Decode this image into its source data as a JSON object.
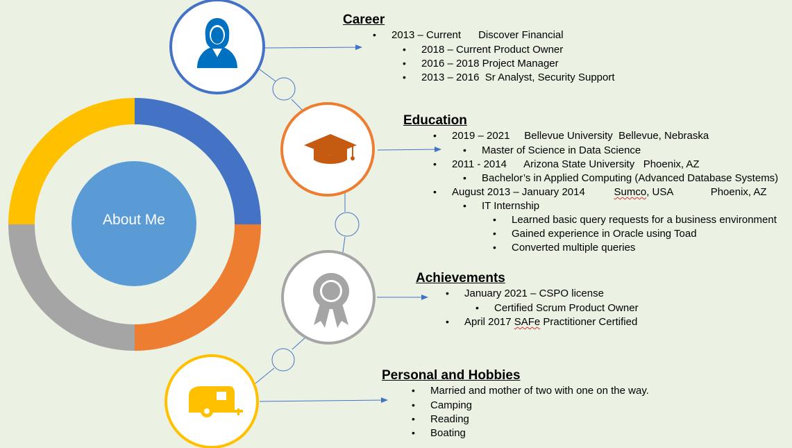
{
  "center": {
    "label": "About Me"
  },
  "colors": {
    "blue": "#4472c4",
    "orange": "#ed7d31",
    "gray": "#a5a5a5",
    "yellow": "#ffc000",
    "center_fill": "#5b9bd5",
    "connector": "#4472c4"
  },
  "sections": {
    "career": {
      "title": "Career",
      "icon": "person-icon",
      "items": [
        "2013 – Current      Discover Financial",
        "2018 – Current Product Owner",
        "2016 – 2018 Project Manager",
        "2013 – 2016  Sr Analyst, Security Support"
      ]
    },
    "education": {
      "title": "Education",
      "icon": "graduation-cap-icon",
      "items": [
        "2019 – 2021     Bellevue University  Bellevue, Nebraska",
        "Master of Science in Data Science",
        "2011 - 2014      Arizona State University   Phoenix, AZ",
        "Bachelor’s in Applied Computing (Advanced Database Systems)",
        "August 2013 – January 2014          ",
        "Sumco",
        ", USA             Phoenix, AZ",
        "IT Internship",
        "Learned basic query requests for a business environment",
        "Gained experience in Oracle using Toad",
        "Converted multiple queries"
      ]
    },
    "achievements": {
      "title": "Achievements",
      "icon": "award-ribbon-icon",
      "items": [
        "January 2021 – CSPO license",
        "Certified Scrum Product Owner",
        "April 2017 ",
        "SAFe",
        " Practitioner Certified"
      ]
    },
    "hobbies": {
      "title": "Personal and Hobbies",
      "icon": "camper-trailer-icon",
      "items": [
        "Married and mother of two with one on the way.",
        "Camping",
        "Reading",
        "Boating"
      ]
    }
  }
}
